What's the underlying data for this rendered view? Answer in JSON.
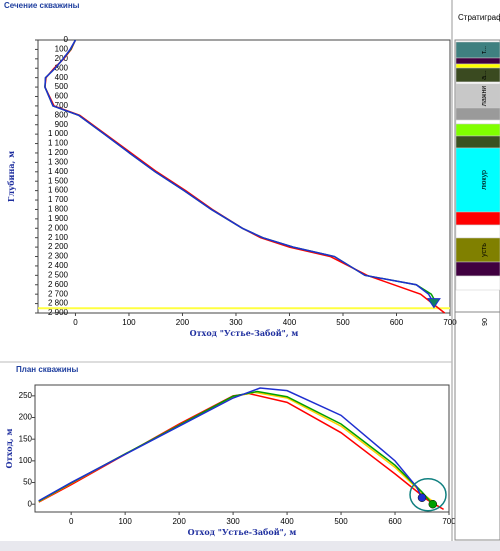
{
  "chart_data": [
    {
      "type": "line",
      "title": "Сечение скважины",
      "xlabel": "Отход \"Устье-Забой\", м",
      "ylabel": "Глубина, м",
      "y_inverted": true,
      "xlim": [
        -70,
        700
      ],
      "ylim": [
        0,
        2900
      ],
      "xticks": [
        0,
        100,
        200,
        300,
        400,
        500,
        600,
        700
      ],
      "yticks": [
        0,
        100,
        200,
        300,
        400,
        500,
        600,
        700,
        800,
        900,
        {
          "value": 1000,
          "label": "1 000"
        },
        {
          "value": 1100,
          "label": "1 100"
        },
        {
          "value": 1200,
          "label": "1 200"
        },
        {
          "value": 1300,
          "label": "1 300"
        },
        {
          "value": 1400,
          "label": "1 400"
        },
        {
          "value": 1500,
          "label": "1 500"
        },
        {
          "value": 1600,
          "label": "1 600"
        },
        {
          "value": 1700,
          "label": "1 700"
        },
        {
          "value": 1800,
          "label": "1 800"
        },
        {
          "value": 1900,
          "label": "1 900"
        },
        {
          "value": 2000,
          "label": "2 000"
        },
        {
          "value": 2100,
          "label": "2 100"
        },
        {
          "value": 2200,
          "label": "2 200"
        },
        {
          "value": 2300,
          "label": "2 300"
        },
        {
          "value": 2400,
          "label": "2 400"
        },
        {
          "value": 2500,
          "label": "2 500"
        },
        {
          "value": 2600,
          "label": "2 600"
        },
        {
          "value": 2700,
          "label": "2 700"
        },
        {
          "value": 2800,
          "label": "2 800"
        },
        {
          "value": 2900,
          "label": "2 900"
        }
      ],
      "target_depth": 2850,
      "target_color": "#ffff40",
      "series": [
        {
          "color": "#ff0000",
          "x": [
            0,
            -8,
            -22,
            -40,
            -55,
            -57,
            -40,
            8,
            56,
            104,
            152,
            206,
            256,
            312,
            346,
            400,
            476,
            545,
            645,
            690
          ],
          "values": [
            0,
            100,
            200,
            300,
            400,
            500,
            700,
            800,
            1000,
            1200,
            1400,
            1600,
            1800,
            2000,
            2100,
            2200,
            2300,
            2500,
            2700,
            2900
          ]
        },
        {
          "color": "#00a000",
          "x": [
            0,
            -9,
            -23,
            -38,
            -56,
            -57,
            -42,
            6,
            54,
            101,
            149,
            203,
            254,
            312,
            350,
            407,
            484,
            541,
            637,
            665,
            675
          ],
          "values": [
            0,
            100,
            200,
            300,
            400,
            500,
            700,
            800,
            1000,
            1200,
            1400,
            1600,
            1800,
            2000,
            2100,
            2200,
            2300,
            2500,
            2600,
            2700,
            2800
          ]
        },
        {
          "color": "#1f2fd0",
          "x": [
            0,
            -10,
            -23,
            -38,
            -56,
            -57,
            -42,
            6,
            54,
            101,
            149,
            203,
            254,
            312,
            350,
            407,
            484,
            541,
            637,
            660,
            670
          ],
          "values": [
            0,
            100,
            200,
            300,
            400,
            500,
            700,
            800,
            1000,
            1200,
            1400,
            1600,
            1800,
            2000,
            2100,
            2200,
            2300,
            2500,
            2600,
            2700,
            2800
          ]
        }
      ]
    },
    {
      "type": "line",
      "title": "План скважины",
      "xlabel": "Отход \"Устье-Забой\", м",
      "ylabel": "Отход, м",
      "xlim": [
        -67,
        700
      ],
      "ylim": [
        -18,
        275
      ],
      "xticks": [
        0,
        100,
        200,
        300,
        400,
        500,
        600,
        700
      ],
      "yticks": [
        0,
        50,
        100,
        150,
        200,
        250
      ],
      "series": [
        {
          "color": "#ff0000",
          "x": [
            -60,
            0,
            100,
            200,
            300,
            330,
            400,
            500,
            600,
            660,
            690
          ],
          "values": [
            5,
            45,
            115,
            185,
            250,
            255,
            235,
            165,
            70,
            10,
            -12
          ]
        },
        {
          "color": "#ffd000",
          "x": [
            -60,
            0,
            100,
            200,
            300,
            340,
            400,
            500,
            600,
            650,
            675
          ],
          "values": [
            6,
            48,
            116,
            182,
            248,
            258,
            245,
            180,
            85,
            25,
            2
          ]
        },
        {
          "color": "#00a000",
          "x": [
            -60,
            0,
            100,
            200,
            300,
            345,
            400,
            500,
            600,
            650,
            670
          ],
          "values": [
            7,
            49,
            116,
            182,
            249,
            260,
            248,
            185,
            90,
            28,
            0
          ]
        },
        {
          "color": "#1f2fd0",
          "x": [
            -60,
            0,
            100,
            200,
            300,
            350,
            400,
            500,
            600,
            640,
            650
          ],
          "values": [
            8,
            50,
            115,
            180,
            245,
            268,
            262,
            205,
            100,
            40,
            15
          ]
        }
      ]
    }
  ],
  "strat": {
    "header": "Стратиграф",
    "bottom_label": "90",
    "layers": [
      {
        "color": "#3f8080",
        "label": "т..."
      },
      {
        "color": "#400040"
      },
      {
        "color": "#ffff00"
      },
      {
        "color": "#3a4a20",
        "label": "а..."
      },
      {
        "color": "#ffffff"
      },
      {
        "color": "#c8c8c8",
        "label": "лажни"
      },
      {
        "color": "#9a9a9a"
      },
      {
        "color": "#ffffff"
      },
      {
        "color": "#80ff00"
      },
      {
        "color": "#3a5020"
      },
      {
        "color": "#00ffff",
        "label": "люкур"
      },
      {
        "color": "#ff0000"
      },
      {
        "color": "#ffffff"
      },
      {
        "color": "#808000",
        "label": "усть"
      },
      {
        "color": "#400040"
      },
      {
        "color": "#ffffff"
      }
    ]
  }
}
